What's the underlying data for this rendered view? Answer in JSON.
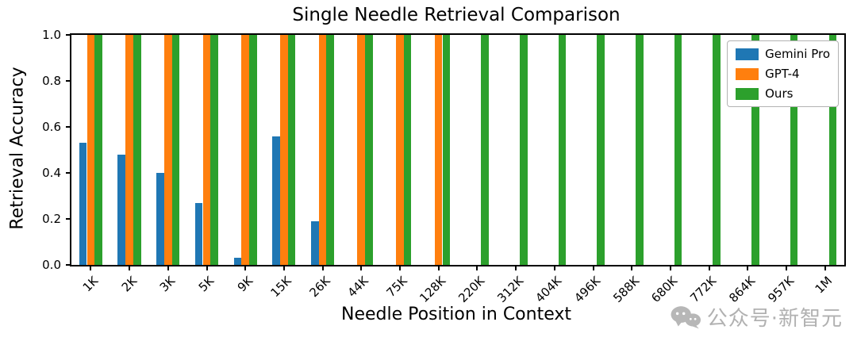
{
  "chart_data": {
    "type": "bar",
    "title": "Single Needle Retrieval Comparison",
    "xlabel": "Needle Position in Context",
    "ylabel": "Retrieval Accuracy",
    "ylim": [
      0,
      1.0
    ],
    "yticks": [
      0.0,
      0.2,
      0.4,
      0.6,
      0.8,
      1.0
    ],
    "grid": false,
    "legend_position": "upper right",
    "categories": [
      "1K",
      "2K",
      "3K",
      "5K",
      "9K",
      "15K",
      "26K",
      "44K",
      "75K",
      "128K",
      "220K",
      "312K",
      "404K",
      "496K",
      "588K",
      "680K",
      "772K",
      "864K",
      "957K",
      "1M"
    ],
    "series": [
      {
        "name": "Gemini Pro",
        "color": "#1f77b4",
        "values": [
          0.53,
          0.48,
          0.4,
          0.27,
          0.03,
          0.56,
          0.19,
          0,
          0,
          0,
          0,
          0,
          0,
          0,
          0,
          0,
          0,
          0,
          0,
          0
        ]
      },
      {
        "name": "GPT-4",
        "color": "#ff7f0e",
        "values": [
          1.0,
          1.0,
          1.0,
          1.0,
          1.0,
          1.0,
          1.0,
          1.0,
          1.0,
          1.0,
          0,
          0,
          0,
          0,
          0,
          0,
          0,
          0,
          0,
          0
        ]
      },
      {
        "name": "Ours",
        "color": "#2ca02c",
        "values": [
          1.0,
          1.0,
          1.0,
          1.0,
          1.0,
          1.0,
          1.0,
          1.0,
          1.0,
          1.0,
          1.0,
          1.0,
          1.0,
          1.0,
          1.0,
          1.0,
          1.0,
          1.0,
          1.0,
          1.0
        ]
      }
    ]
  },
  "watermark": {
    "text": "公众号·新智元",
    "color": "#9e9e9e"
  }
}
